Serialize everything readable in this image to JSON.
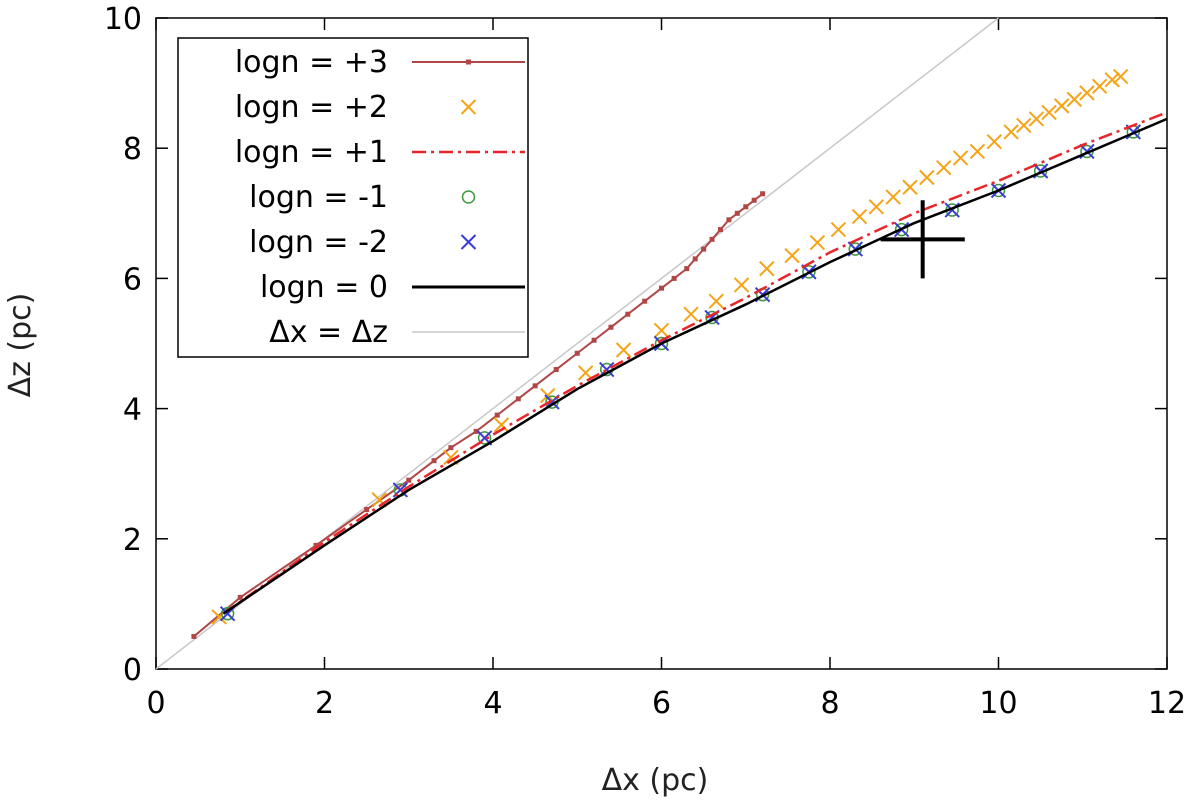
{
  "chart_data": {
    "type": "line",
    "title": "",
    "xlabel": "Δx (pc)",
    "ylabel": "Δz (pc)",
    "xlim": [
      0,
      12
    ],
    "ylim": [
      0,
      10
    ],
    "xticks": [
      "0",
      "2",
      "4",
      "6",
      "8",
      "10",
      "12"
    ],
    "yticks": [
      "0",
      "2",
      "4",
      "6",
      "8",
      "10"
    ],
    "legend_position": "top-left",
    "series": [
      {
        "name": "logn = +3",
        "style": "line-points",
        "color": "#b04646",
        "x": [
          0.45,
          1.0,
          1.9,
          2.5,
          3.0,
          3.3,
          3.5,
          3.8,
          4.05,
          4.3,
          4.5,
          4.75,
          5.0,
          5.2,
          5.4,
          5.6,
          5.8,
          6.0,
          6.15,
          6.3,
          6.4,
          6.5,
          6.6,
          6.7,
          6.8,
          6.9,
          7.0,
          7.1,
          7.2
        ],
        "y": [
          0.5,
          1.1,
          1.9,
          2.45,
          2.9,
          3.2,
          3.4,
          3.65,
          3.9,
          4.15,
          4.35,
          4.6,
          4.85,
          5.05,
          5.25,
          5.45,
          5.65,
          5.85,
          6.0,
          6.15,
          6.3,
          6.45,
          6.6,
          6.75,
          6.9,
          7.0,
          7.1,
          7.2,
          7.3
        ]
      },
      {
        "name": "logn = +2",
        "style": "x-markers",
        "color": "#f5a317",
        "x": [
          0.75,
          2.65,
          3.5,
          4.1,
          4.65,
          5.1,
          5.55,
          6.0,
          6.35,
          6.65,
          6.95,
          7.25,
          7.55,
          7.85,
          8.1,
          8.35,
          8.55,
          8.75,
          8.95,
          9.15,
          9.35,
          9.55,
          9.75,
          9.95,
          10.15,
          10.3,
          10.45,
          10.6,
          10.75,
          10.9,
          11.05,
          11.2,
          11.35,
          11.45
        ],
        "y": [
          0.8,
          2.6,
          3.25,
          3.75,
          4.2,
          4.55,
          4.9,
          5.2,
          5.45,
          5.65,
          5.9,
          6.15,
          6.35,
          6.55,
          6.75,
          6.95,
          7.1,
          7.25,
          7.4,
          7.55,
          7.7,
          7.85,
          7.95,
          8.1,
          8.25,
          8.35,
          8.45,
          8.55,
          8.65,
          8.75,
          8.85,
          8.95,
          9.05,
          9.1
        ]
      },
      {
        "name": "logn = +1",
        "style": "dash-dot",
        "color": "#e8262a",
        "x": [
          0.8,
          2.0,
          3.0,
          4.0,
          5.0,
          6.0,
          7.0,
          8.0,
          9.0,
          10.0,
          11.0,
          12.0
        ],
        "y": [
          0.85,
          1.95,
          2.8,
          3.6,
          4.35,
          5.05,
          5.7,
          6.4,
          7.0,
          7.5,
          8.05,
          8.55
        ]
      },
      {
        "name": "logn = -1",
        "style": "circle-markers",
        "color": "#3c9a3c",
        "x": [
          0.85,
          2.9,
          3.9,
          4.7,
          5.35,
          6.0,
          6.6,
          7.2,
          7.75,
          8.3,
          8.85,
          9.45,
          10.0,
          10.5,
          11.05,
          11.6
        ],
        "y": [
          0.85,
          2.75,
          3.55,
          4.1,
          4.6,
          5.0,
          5.4,
          5.75,
          6.1,
          6.45,
          6.75,
          7.05,
          7.35,
          7.65,
          7.95,
          8.25
        ]
      },
      {
        "name": "logn = -2",
        "style": "x-markers",
        "color": "#3b3bdc",
        "x": [
          0.85,
          2.9,
          3.9,
          4.7,
          5.35,
          6.0,
          6.6,
          7.2,
          7.75,
          8.3,
          8.85,
          9.45,
          10.0,
          10.5,
          11.05,
          11.6
        ],
        "y": [
          0.85,
          2.75,
          3.55,
          4.1,
          4.6,
          5.0,
          5.4,
          5.75,
          6.1,
          6.45,
          6.75,
          7.05,
          7.35,
          7.65,
          7.95,
          8.25
        ]
      },
      {
        "name": "logn = 0",
        "style": "line",
        "color": "#000000",
        "x": [
          0.8,
          2.0,
          3.0,
          4.0,
          5.0,
          6.0,
          7.0,
          8.0,
          9.0,
          10.0,
          11.0,
          12.0
        ],
        "y": [
          0.85,
          1.9,
          2.75,
          3.5,
          4.3,
          5.0,
          5.6,
          6.25,
          6.85,
          7.35,
          7.9,
          8.45
        ]
      },
      {
        "name": "Δx = Δz",
        "style": "thin-line",
        "color": "#c8c8c8",
        "x": [
          0,
          10
        ],
        "y": [
          0,
          10
        ]
      }
    ],
    "annotation": {
      "type": "cross-marker",
      "x": 9.1,
      "y": 6.6,
      "x_error": 0.5,
      "y_error": 0.6,
      "color": "#000000"
    }
  }
}
